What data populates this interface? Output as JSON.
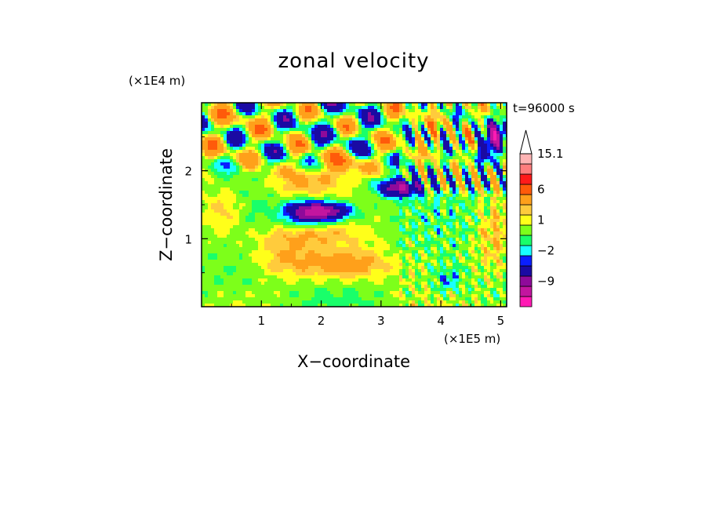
{
  "chart_data": {
    "type": "heatmap",
    "title": "zonal velocity",
    "xlabel": "X−coordinate",
    "ylabel": "Z−coordinate",
    "x_scale_label": "(×1E5 m)",
    "y_scale_label": "(×1E4 m)",
    "time_label": "t=96000 s",
    "xlim": [
      0,
      5.1
    ],
    "ylim": [
      0,
      3.0
    ],
    "x_ticks": [
      1,
      2,
      3,
      4,
      5
    ],
    "y_ticks": [
      1,
      2
    ],
    "colorbar": {
      "levels": [
        -15,
        -12,
        -9,
        -6,
        -3,
        -2,
        -1,
        0,
        1,
        2,
        3,
        6,
        9,
        12,
        15.1
      ],
      "labeled_ticks": [
        15.1,
        6,
        1,
        -2,
        -9
      ],
      "colors": [
        "#ff1ab4",
        "#c2159f",
        "#8f0a9a",
        "#1a0aa3",
        "#0a1fff",
        "#19ffff",
        "#19ff6a",
        "#7dff1a",
        "#ffff1a",
        "#ffcb3c",
        "#ffa01a",
        "#ff5a0a",
        "#ff1a1a",
        "#ff7d7d",
        "#ffb4b4"
      ],
      "extend_max": true
    },
    "features": [
      {
        "x": 2.0,
        "z": 1.4,
        "value": -10
      },
      {
        "x": 3.3,
        "z": 1.75,
        "value": -9
      },
      {
        "x": 2.4,
        "z": 0.6,
        "value": 4
      },
      {
        "x": 2.0,
        "z": 2.55,
        "value": -8
      },
      {
        "x": 4.9,
        "z": 2.45,
        "value": -8
      },
      {
        "x": 1.7,
        "z": 1.8,
        "value": 3
      },
      {
        "x": 2.3,
        "z": 2.1,
        "value": 3
      },
      {
        "x": 4.1,
        "z": 0.4,
        "value": -2
      }
    ]
  }
}
